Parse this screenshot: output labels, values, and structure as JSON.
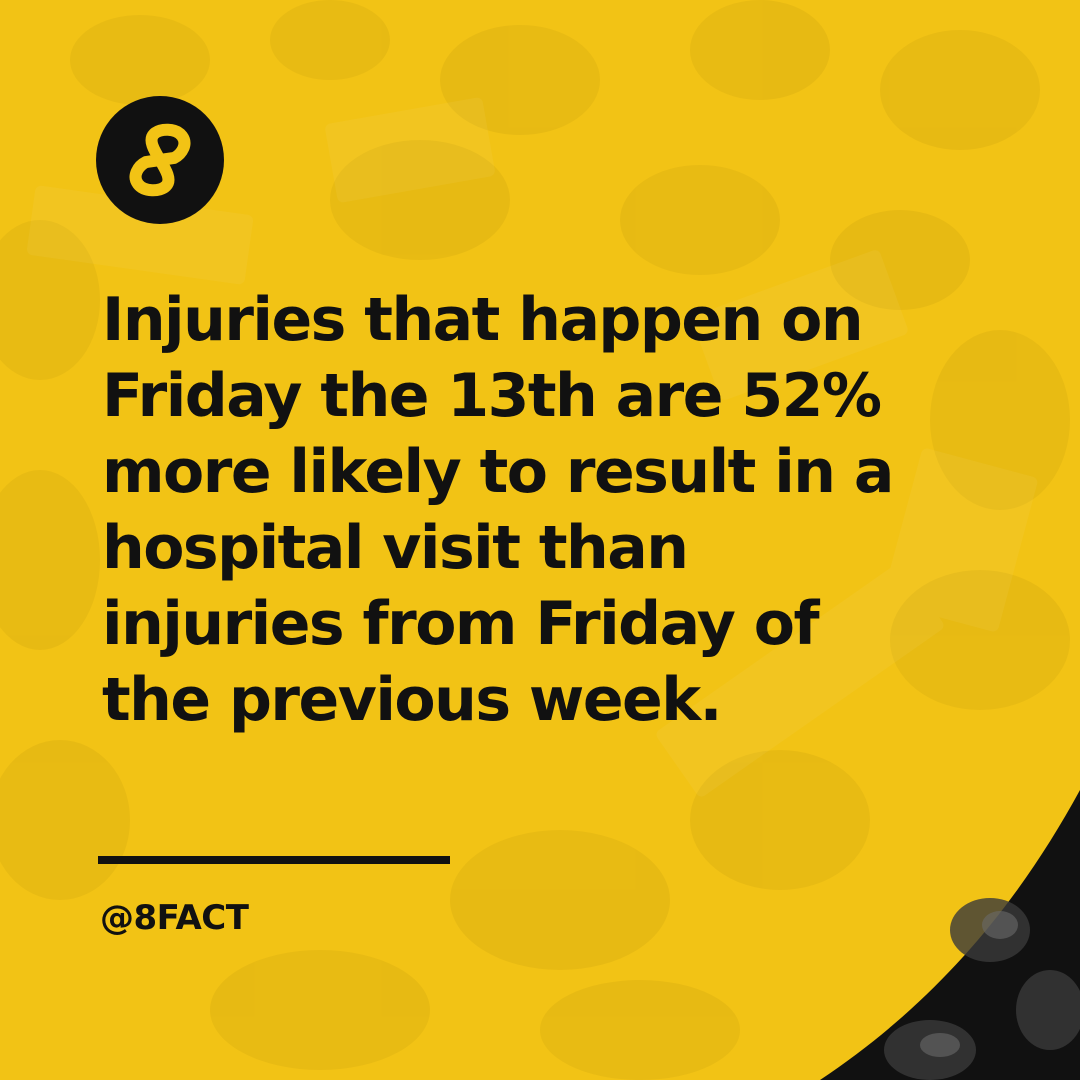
{
  "brand": {
    "logo_icon": "eight-infinity-icon",
    "handle": "@8FACT",
    "background_color": "#f2c315",
    "text_color": "#111111"
  },
  "fact": {
    "lines": [
      "Injuries that happen on",
      "Friday the 13th are 52%",
      "more likely to result in a",
      "hospital visit than",
      "injuries from Friday of",
      "the previous week."
    ]
  }
}
